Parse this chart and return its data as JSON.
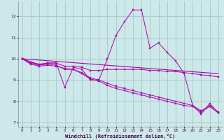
{
  "bg_color": "#cce8e8",
  "grid_color": "#aacccc",
  "line_color": "#aa00aa",
  "xlabel": "Windchill (Refroidissement éolien,°C)",
  "xlim": [
    -0.5,
    23.5
  ],
  "ylim": [
    6.8,
    12.7
  ],
  "yticks": [
    7,
    8,
    9,
    10,
    11,
    12
  ],
  "xticks": [
    0,
    1,
    2,
    3,
    4,
    5,
    6,
    7,
    8,
    9,
    10,
    11,
    12,
    13,
    14,
    15,
    16,
    17,
    18,
    19,
    20,
    21,
    22,
    23
  ],
  "series": [
    {
      "x": [
        0,
        1,
        2,
        3,
        4,
        5,
        6,
        7,
        8,
        9,
        10,
        11,
        12,
        13,
        14,
        15,
        16,
        17,
        18,
        19,
        20,
        21,
        22,
        23
      ],
      "y": [
        10.0,
        9.85,
        9.7,
        9.8,
        9.8,
        8.65,
        9.6,
        9.5,
        9.0,
        9.0,
        10.0,
        11.1,
        11.75,
        12.3,
        12.3,
        10.5,
        10.75,
        10.3,
        9.9,
        9.3,
        7.8,
        7.4,
        7.9,
        7.45
      ],
      "marker": true
    },
    {
      "x": [
        0,
        1,
        2,
        3,
        4,
        5,
        6,
        7,
        8,
        9,
        10,
        11,
        12,
        13,
        14,
        15,
        16,
        17,
        18,
        19,
        20,
        21,
        22,
        23
      ],
      "y": [
        10.0,
        9.85,
        9.75,
        9.8,
        9.8,
        9.65,
        9.65,
        9.6,
        9.45,
        9.45,
        9.5,
        9.5,
        9.5,
        9.5,
        9.5,
        9.45,
        9.45,
        9.4,
        9.4,
        9.35,
        9.3,
        9.25,
        9.2,
        9.15
      ],
      "marker": true
    },
    {
      "x": [
        0,
        23
      ],
      "y": [
        10.0,
        9.3
      ],
      "marker": false
    },
    {
      "x": [
        0,
        1,
        2,
        3,
        4,
        5,
        6,
        7,
        8,
        9,
        10,
        11,
        12,
        13,
        14,
        15,
        16,
        17,
        18,
        19,
        20,
        21,
        22,
        23
      ],
      "y": [
        10.0,
        9.8,
        9.7,
        9.75,
        9.7,
        9.5,
        9.5,
        9.35,
        9.1,
        9.0,
        8.85,
        8.7,
        8.6,
        8.5,
        8.4,
        8.3,
        8.2,
        8.1,
        8.0,
        7.9,
        7.8,
        7.55,
        7.8,
        7.5
      ],
      "marker": true
    },
    {
      "x": [
        0,
        1,
        2,
        3,
        4,
        5,
        6,
        7,
        8,
        9,
        10,
        11,
        12,
        13,
        14,
        15,
        16,
        17,
        18,
        19,
        20,
        21,
        22,
        23
      ],
      "y": [
        10.0,
        9.75,
        9.65,
        9.7,
        9.65,
        9.55,
        9.5,
        9.3,
        9.05,
        8.95,
        8.75,
        8.6,
        8.5,
        8.4,
        8.3,
        8.2,
        8.1,
        8.0,
        7.9,
        7.8,
        7.75,
        7.5,
        7.75,
        7.45
      ],
      "marker": true
    }
  ]
}
